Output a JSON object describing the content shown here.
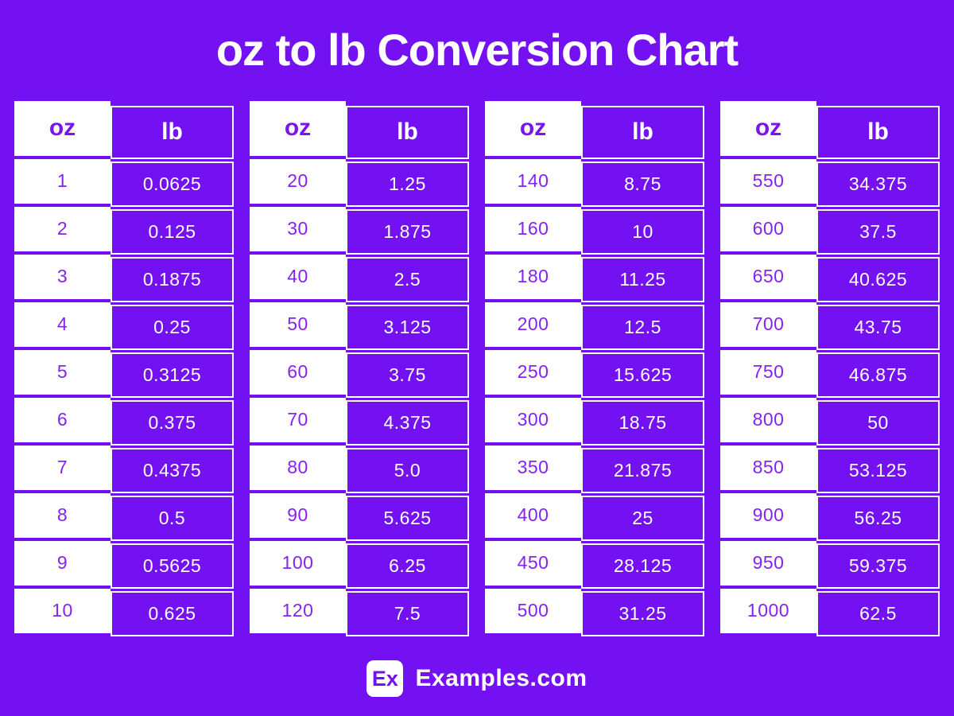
{
  "title": "oz to lb Conversion Chart",
  "colors": {
    "background": "#7411F2",
    "cell_purple": "#7411F2",
    "white": "#ffffff",
    "oz_text": "#8422F4"
  },
  "footer": {
    "logo": "Ex",
    "site": "Examples.com"
  },
  "chart_data": {
    "type": "table",
    "title": "oz to lb Conversion Chart",
    "columns": [
      "oz",
      "lb"
    ],
    "tables": [
      {
        "rows": [
          [
            "1",
            "0.0625"
          ],
          [
            "2",
            "0.125"
          ],
          [
            "3",
            "0.1875"
          ],
          [
            "4",
            "0.25"
          ],
          [
            "5",
            "0.3125"
          ],
          [
            "6",
            "0.375"
          ],
          [
            "7",
            "0.4375"
          ],
          [
            "8",
            "0.5"
          ],
          [
            "9",
            "0.5625"
          ],
          [
            "10",
            "0.625"
          ]
        ]
      },
      {
        "rows": [
          [
            "20",
            "1.25"
          ],
          [
            "30",
            "1.875"
          ],
          [
            "40",
            "2.5"
          ],
          [
            "50",
            "3.125"
          ],
          [
            "60",
            "3.75"
          ],
          [
            "70",
            "4.375"
          ],
          [
            "80",
            "5.0"
          ],
          [
            "90",
            "5.625"
          ],
          [
            "100",
            "6.25"
          ],
          [
            "120",
            "7.5"
          ]
        ]
      },
      {
        "rows": [
          [
            "140",
            "8.75"
          ],
          [
            "160",
            "10"
          ],
          [
            "180",
            "11.25"
          ],
          [
            "200",
            "12.5"
          ],
          [
            "250",
            "15.625"
          ],
          [
            "300",
            "18.75"
          ],
          [
            "350",
            "21.875"
          ],
          [
            "400",
            "25"
          ],
          [
            "450",
            "28.125"
          ],
          [
            "500",
            "31.25"
          ]
        ]
      },
      {
        "rows": [
          [
            "550",
            "34.375"
          ],
          [
            "600",
            "37.5"
          ],
          [
            "650",
            "40.625"
          ],
          [
            "700",
            "43.75"
          ],
          [
            "750",
            "46.875"
          ],
          [
            "800",
            "50"
          ],
          [
            "850",
            "53.125"
          ],
          [
            "900",
            "56.25"
          ],
          [
            "950",
            "59.375"
          ],
          [
            "1000",
            "62.5"
          ]
        ]
      }
    ]
  }
}
